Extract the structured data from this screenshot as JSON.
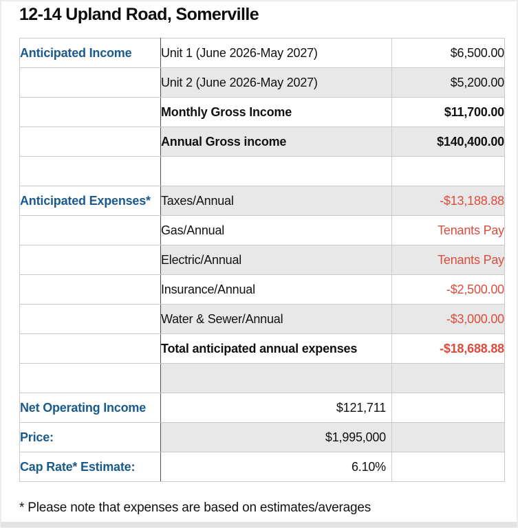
{
  "page": {
    "title": "12-14 Upland Road, Somerville",
    "footnote": "* Please note that expenses are based on estimates/averages"
  },
  "colors": {
    "label_blue": "#1a5a8c",
    "negative_red": "#dc4c3c",
    "row_shade": "#e8e8e8",
    "grid_line": "#c9c9c9",
    "column_divider": "#4d4d4d"
  },
  "table": {
    "rows": [
      {
        "label": "Anticipated Income",
        "item": "Unit 1 (June 2026-May 2027)",
        "value": "$6,500.00"
      },
      {
        "label": "",
        "item": "Unit 2 (June 2026-May 2027)",
        "value": "$5,200.00"
      },
      {
        "label": "",
        "item": "Monthly Gross Income",
        "value": "$11,700.00"
      },
      {
        "label": "",
        "item": "Annual Gross income",
        "value": "$140,400.00"
      },
      {
        "label": "",
        "item": "",
        "value": ""
      },
      {
        "label": "Anticipated Expenses*",
        "item": "Taxes/Annual",
        "value": "-$13,188.88"
      },
      {
        "label": "",
        "item": "Gas/Annual",
        "value": "Tenants Pay"
      },
      {
        "label": "",
        "item": "Electric/Annual",
        "value": "Tenants Pay"
      },
      {
        "label": "",
        "item": "Insurance/Annual",
        "value": "-$2,500.00"
      },
      {
        "label": "",
        "item": "Water & Sewer/Annual",
        "value": "-$3,000.00"
      },
      {
        "label": "",
        "item": "Total anticipated annual expenses",
        "value": "-$18,688.88"
      },
      {
        "label": "",
        "item": "",
        "value": ""
      },
      {
        "label": "Net Operating Income",
        "item": "$121,711",
        "value": ""
      },
      {
        "label": "Price:",
        "item": "$1,995,000",
        "value": ""
      },
      {
        "label": "Cap Rate* Estimate:",
        "item": "6.10%",
        "value": ""
      }
    ]
  }
}
